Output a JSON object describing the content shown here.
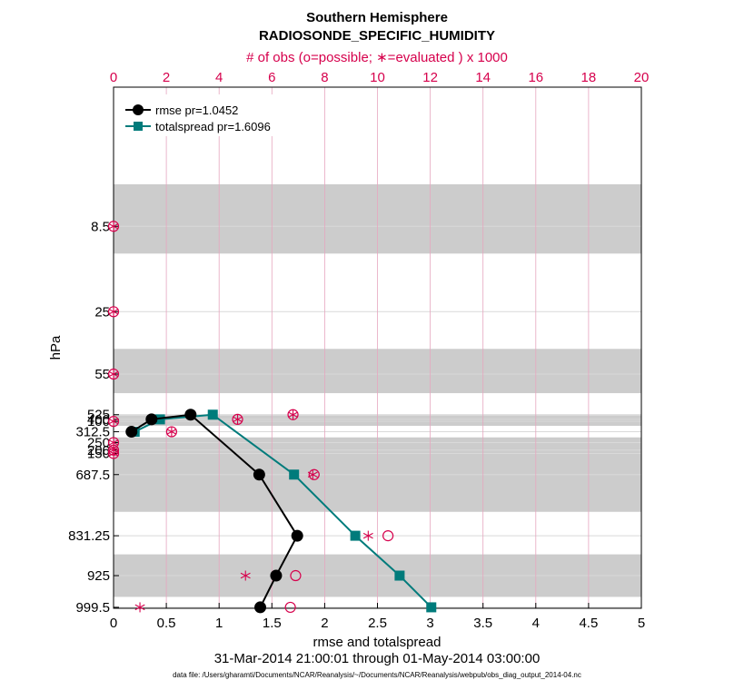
{
  "chart_data": {
    "type": "line",
    "title": "Southern Hemisphere",
    "subtitle": "RADIOSONDE_SPECIFIC_HUMIDITY",
    "top_axis_label": "# of obs (o=possible; ∗=evaluated ) x 1000",
    "xlabel": "rmse and totalspread",
    "ylabel": "hPa",
    "date_range": "31-Mar-2014 21:00:01 through 01-May-2014 03:00:00",
    "footnote": "data file: /Users/gharamti/Documents/NCAR/Reanalysis/~/Documents/NCAR/Reanalysis/webpub/obs_diag_output_2014-04.nc",
    "xlim": [
      0,
      5
    ],
    "xticks": [
      0,
      0.5,
      1,
      1.5,
      2,
      2.5,
      3,
      3.5,
      4,
      4.5,
      5
    ],
    "xtick_labels": [
      "0",
      "0.5",
      "1",
      "1.5",
      "2",
      "2.5",
      "3",
      "3.5",
      "4",
      "4.5",
      "5"
    ],
    "top_xlim": [
      0,
      20
    ],
    "top_ticks": [
      0,
      2,
      4,
      6,
      8,
      10,
      12,
      14,
      16,
      18,
      20
    ],
    "top_tick_labels": [
      "0",
      "2",
      "4",
      "6",
      "8",
      "10",
      "12",
      "14",
      "16",
      "18",
      "20"
    ],
    "levels": [
      8.5,
      25,
      55,
      100,
      150,
      200,
      250,
      312.5,
      400,
      525,
      687.5,
      831.25,
      925,
      999.5
    ],
    "level_labels": [
      "8.5",
      "25",
      "55",
      "100",
      "150",
      "200",
      "250",
      "312.5",
      "400",
      "525",
      "687.5",
      "831.25",
      "925",
      "999.5"
    ],
    "layer_bands_hpa": [
      [
        5,
        12
      ],
      [
        40,
        70
      ],
      [
        130,
        175
      ],
      [
        225,
        275
      ],
      [
        350,
        450
      ],
      [
        600,
        775
      ],
      [
        875,
        975
      ]
    ],
    "series": [
      {
        "name": "rmse",
        "legend": "rmse pr=1.0452",
        "color": "#000000",
        "marker": "circle",
        "levels": [
          312.5,
          400,
          525,
          687.5,
          831.25,
          925,
          999.5
        ],
        "values": [
          0.17,
          0.36,
          0.73,
          1.38,
          1.74,
          1.54,
          1.39
        ]
      },
      {
        "name": "totalspread",
        "legend": "totalspread pr=1.6096",
        "color": "#007b7b",
        "marker": "square",
        "levels": [
          312.5,
          400,
          525,
          687.5,
          831.25,
          925,
          999.5
        ],
        "values": [
          0.2,
          0.44,
          0.94,
          1.71,
          2.29,
          2.71,
          3.01
        ]
      }
    ],
    "obs_possible": {
      "units": "thousands",
      "levels": [
        8.5,
        25,
        55,
        100,
        150,
        200,
        250,
        312.5,
        400,
        525,
        687.5,
        831.25,
        925,
        999.5
      ],
      "values": [
        0,
        0,
        0,
        0,
        0,
        0,
        0,
        2.2,
        4.7,
        6.8,
        7.6,
        10.4,
        6.9,
        6.7
      ]
    },
    "obs_evaluated": {
      "units": "thousands",
      "levels": [
        8.5,
        25,
        55,
        100,
        150,
        200,
        250,
        312.5,
        400,
        525,
        687.5,
        831.25,
        925,
        999.5
      ],
      "values": [
        0,
        0,
        0,
        0,
        0,
        0,
        0,
        2.2,
        4.7,
        6.8,
        7.55,
        9.65,
        5.0,
        1.0
      ]
    },
    "colors": {
      "obs": "#d6004c",
      "rmse": "#000000",
      "totalspread": "#007b7b",
      "band": "#cccccc",
      "grid": "#d9d9d9"
    }
  }
}
